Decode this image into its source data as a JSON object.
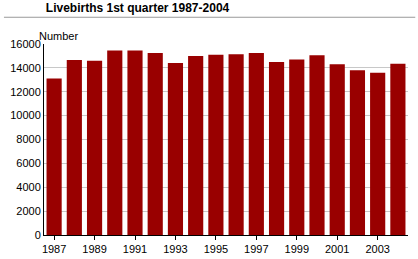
{
  "chart_data": {
    "type": "bar",
    "title": "Livebirths 1st quarter 1987-2004",
    "y_label": "Number",
    "categories": [
      "1987",
      null,
      "1989",
      null,
      "1991",
      null,
      "1993",
      null,
      "1995",
      null,
      "1997",
      null,
      "1999",
      null,
      "2001",
      null,
      "2003",
      null
    ],
    "values": [
      13100,
      14650,
      14600,
      15450,
      15450,
      15250,
      14400,
      15000,
      15100,
      15150,
      15250,
      14500,
      14700,
      15050,
      14300,
      13800,
      13600,
      14350
    ],
    "color": "#990000",
    "ylim": [
      0,
      16000
    ],
    "yticks": [
      0,
      2000,
      4000,
      6000,
      8000,
      10000,
      12000,
      14000,
      16000
    ],
    "grid": true
  }
}
